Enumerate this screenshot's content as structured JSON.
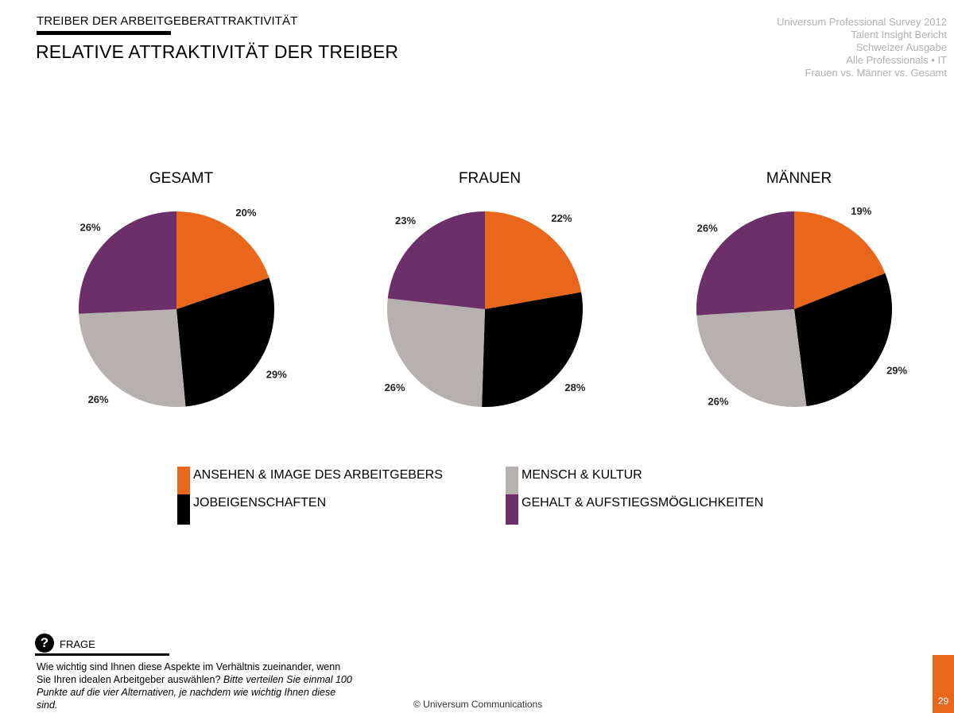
{
  "header": {
    "section_label": "TREIBER DER ARBEITGEBERATTRAKTIVITÄT",
    "title": "RELATIVE ATTRAKTIVITÄT DER TREIBER",
    "meta_lines": [
      "Universum Professional Survey 2012",
      "Talent Insight Bericht",
      "Schweizer Ausgabe",
      "Alle Professionals • IT",
      "Frauen vs. Männer vs. Gesamt"
    ]
  },
  "colors": {
    "ansehen": "#e8671a",
    "jobeigenschaften": "#000000",
    "mensch": "#b6b1ae",
    "gehalt": "#6c2f6a",
    "accent": "#e8671a"
  },
  "chart_data": [
    {
      "type": "pie",
      "title": "GESAMT",
      "categories": [
        "ANSEHEN & IMAGE DES ARBEITGEBERS",
        "JOBEIGENSCHAFTEN",
        "MENSCH & KULTUR",
        "GEHALT & AUFSTIEGSMÖGLICHKEITEN"
      ],
      "values": [
        20,
        29,
        26,
        26
      ],
      "labels": [
        "20%",
        "29%",
        "26%",
        "26%"
      ]
    },
    {
      "type": "pie",
      "title": "FRAUEN",
      "categories": [
        "ANSEHEN & IMAGE DES ARBEITGEBERS",
        "JOBEIGENSCHAFTEN",
        "MENSCH & KULTUR",
        "GEHALT & AUFSTIEGSMÖGLICHKEITEN"
      ],
      "values": [
        22,
        28,
        26,
        23
      ],
      "labels": [
        "22%",
        "28%",
        "26%",
        "23%"
      ]
    },
    {
      "type": "pie",
      "title": "MÄNNER",
      "categories": [
        "ANSEHEN & IMAGE DES ARBEITGEBERS",
        "JOBEIGENSCHAFTEN",
        "MENSCH & KULTUR",
        "GEHALT & AUFSTIEGSMÖGLICHKEITEN"
      ],
      "values": [
        19,
        29,
        26,
        26
      ],
      "labels": [
        "19%",
        "29%",
        "26%",
        "26%"
      ]
    }
  ],
  "legend": [
    {
      "label": "ANSEHEN & IMAGE DES ARBEITGEBERS",
      "color": "#e8671a"
    },
    {
      "label": "JOBEIGENSCHAFTEN",
      "color": "#000000"
    },
    {
      "label": "MENSCH & KULTUR",
      "color": "#b6b1ae"
    },
    {
      "label": "GEHALT & AUFSTIEGSMÖGLICHKEITEN",
      "color": "#6c2f6a"
    }
  ],
  "question": {
    "icon": "?",
    "label": "FRAGE",
    "text_plain": "Wie wichtig  sind Ihnen diese Aspekte im Verhältnis zueinander, wenn Sie Ihren idealen Arbeitgeber auswählen?",
    "text_italic": "Bitte verteilen Sie einmal 100 Punkte auf die vier Alternativen, je nachdem wie wichtig Ihnen diese sind."
  },
  "footer": {
    "copyright": "© Universum Communications",
    "page_number": "29"
  }
}
